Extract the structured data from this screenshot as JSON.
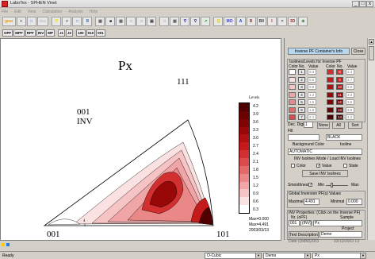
{
  "window": {
    "title": "LaboTex - SPHEN Vinet",
    "min_glyph": "_",
    "max_glyph": "□",
    "close_glyph": "x"
  },
  "menu": [
    "File",
    "Edit",
    "View",
    "Calculation",
    "Analysis",
    "Help"
  ],
  "toolbar": {
    "buttons": [
      "gear",
      "+",
      "□",
      "doc",
      "P",
      "σ",
      "□",
      "B",
      "▦",
      "■",
      "▦",
      "□",
      "□",
      "▣",
      "□",
      "▦",
      "∇",
      "∇",
      "↗",
      "Q",
      "MO",
      "A",
      "B",
      "BII",
      "I",
      "=",
      "3D",
      "⊕"
    ],
    "second_row": [
      "OPF",
      "MPF",
      "RPF",
      "INV",
      "MP",
      "J1",
      "J2",
      "100",
      "010",
      "001"
    ]
  },
  "plot": {
    "title": "Px",
    "vertex_top": "111",
    "vertex_left": "001",
    "vertex_right": "101",
    "direction_label": "001",
    "direction_type": "INV",
    "legend_title": "Levels",
    "levels": [
      "4.2",
      "3.9",
      "3.6",
      "3.3",
      "3.0",
      "2.7",
      "2.4",
      "2.1",
      "1.8",
      "1.5",
      "1.2",
      "0.9",
      "0.6",
      "0.3"
    ],
    "max_line": "Max=0.000",
    "max2_line": "Max=4.491",
    "date_line": "2003/03/13",
    "axis_tick": "4"
  },
  "panel": {
    "header_button": "Inverse PF Container's Info",
    "close_button": "Close",
    "isolines_group": "Isolines/Levels for Inverse PF",
    "col_headers": [
      "Color",
      "No.",
      "Value",
      "Color",
      "No.",
      "Value"
    ],
    "rows_left": [
      {
        "no": "1",
        "value": "0.3"
      },
      {
        "no": "2",
        "value": "0.6"
      },
      {
        "no": "3",
        "value": "0.9"
      },
      {
        "no": "4",
        "value": "1.2"
      },
      {
        "no": "5",
        "value": "1.5"
      },
      {
        "no": "6",
        "value": "1.8"
      },
      {
        "no": "7",
        "value": "2.1"
      }
    ],
    "rows_right": [
      {
        "no": "8",
        "value": "2.4"
      },
      {
        "no": "9",
        "value": "2.7"
      },
      {
        "no": "10",
        "value": "3.0"
      },
      {
        "no": "11",
        "value": "3.3"
      },
      {
        "no": "12",
        "value": "3.6"
      },
      {
        "no": "13",
        "value": "3.9"
      },
      {
        "no": "14",
        "value": "4.2"
      }
    ],
    "swatches_left": [
      "#ffffff",
      "#fbe2e2",
      "#f6c4c4",
      "#f0a6a6",
      "#ea8888",
      "#e26a6a",
      "#da4c4c"
    ],
    "swatches_right": [
      "#d23030",
      "#c41a1a",
      "#b01010",
      "#980808",
      "#800404",
      "#6a0202",
      "#500000"
    ],
    "dec_digit_label": "Dec. Digit",
    "dec_digit_value": "1",
    "none_button": "None",
    "all_button": "All",
    "sort_button": "Sort",
    "fill_label": "Fill",
    "fill_value": "BLACK",
    "background_label": "Background Color",
    "isoline_label": "Isoline",
    "auto_value": "AUTOMATIC",
    "mode_label": "INV Isolines Mode / Load INV Isolines",
    "color_label": "Color",
    "value_label": "Value",
    "state_label": "State",
    "value_check": "✓",
    "save_button": "Save INV Isolines",
    "smooth_label": "Smoothness",
    "smooth_check": "✓",
    "min_label": "Min",
    "max_label": "Max",
    "global_label": "Global Inversion PF(s) Values",
    "maximal_label": "Maximal",
    "maximal_value": "4.491",
    "minimal_label": "Minimal",
    "minimal_value": "0.000",
    "props_label": "INV Properties: (Click on the Inverse PF)",
    "inv_opf_label": "Nr. (oPF)",
    "sample_label": "Sample",
    "inv_no": "001",
    "inv_type": "(INV)",
    "inv_sample": "Px",
    "project_label": "Project",
    "text_desc_button": "Text Description",
    "demo_value": "Demo",
    "date_row_label": "Date (DMM)",
    "date_row_value": "2003",
    "date_row_extra": "03/13/2003 13"
  },
  "status": {
    "ready": "Ready",
    "symmetry": "O-Cubic",
    "project": "Demo",
    "sample": "Px"
  }
}
